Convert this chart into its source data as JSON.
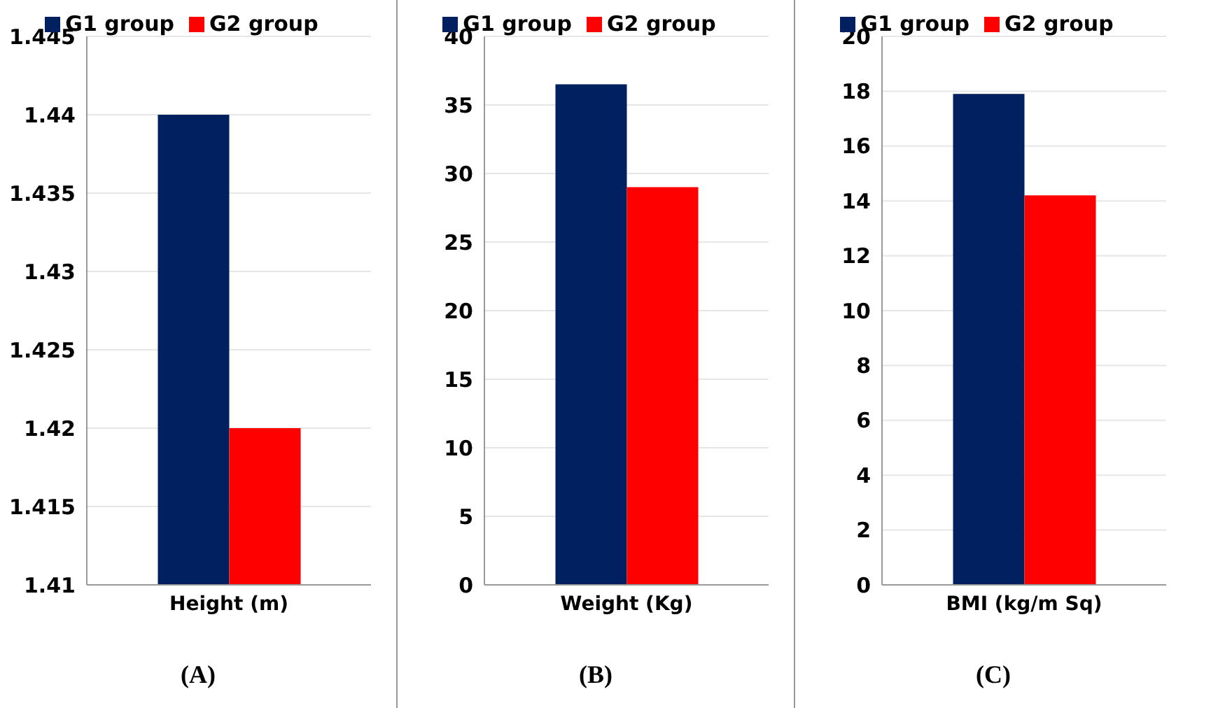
{
  "chart_data": [
    {
      "type": "bar",
      "categories": [
        "Height (m)"
      ],
      "series": [
        {
          "name": "G1 group",
          "color": "#002060",
          "values": [
            1.44
          ]
        },
        {
          "name": "G2 group",
          "color": "#ff0000",
          "values": [
            1.42
          ]
        }
      ],
      "ylim": [
        1.41,
        1.445
      ],
      "yticks": [
        1.41,
        1.415,
        1.42,
        1.425,
        1.43,
        1.435,
        1.44,
        1.445
      ],
      "grid": "y",
      "legend": "top",
      "annotations": [
        "(A)"
      ]
    },
    {
      "type": "bar",
      "categories": [
        "Weight (Kg)"
      ],
      "series": [
        {
          "name": "G1 group",
          "color": "#002060",
          "values": [
            36.5
          ]
        },
        {
          "name": "G2 group",
          "color": "#ff0000",
          "values": [
            29
          ]
        }
      ],
      "ylim": [
        0,
        40
      ],
      "yticks": [
        0,
        5,
        10,
        15,
        20,
        25,
        30,
        35,
        40
      ],
      "grid": "y",
      "legend": "top",
      "annotations": [
        "(B)"
      ]
    },
    {
      "type": "bar",
      "categories": [
        "BMI (kg/m Sq)"
      ],
      "series": [
        {
          "name": "G1 group",
          "color": "#002060",
          "values": [
            17.9
          ]
        },
        {
          "name": "G2 group",
          "color": "#ff0000",
          "values": [
            14.2
          ]
        }
      ],
      "ylim": [
        0,
        20
      ],
      "yticks": [
        0,
        2,
        4,
        6,
        8,
        10,
        12,
        14,
        16,
        18,
        20
      ],
      "grid": "y",
      "legend": "top",
      "annotations": [
        "(C)"
      ]
    }
  ]
}
